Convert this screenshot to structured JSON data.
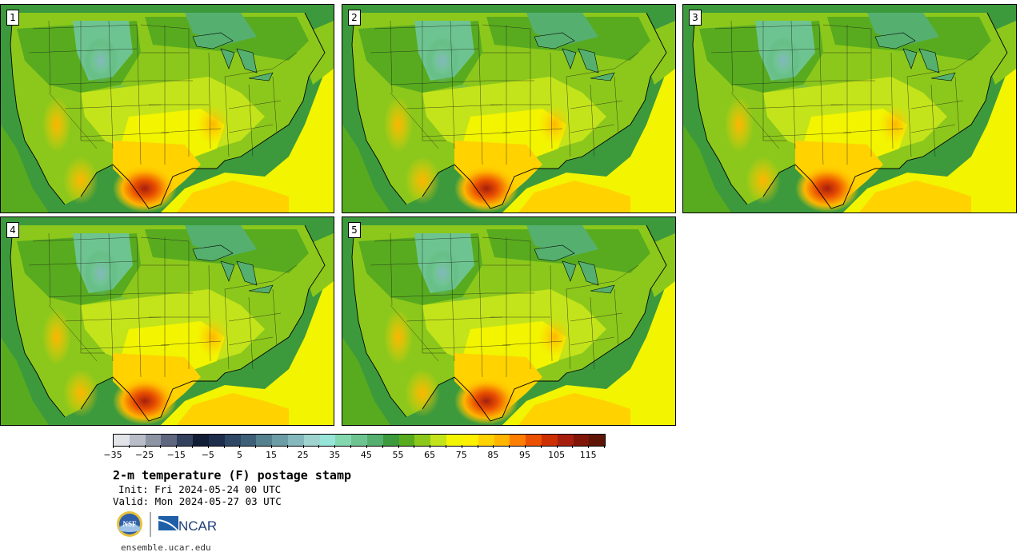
{
  "panels": [
    {
      "label": "1"
    },
    {
      "label": "2"
    },
    {
      "label": "3"
    },
    {
      "label": "4"
    },
    {
      "label": "5"
    }
  ],
  "colorbar": {
    "colors": [
      "#e2e4ea",
      "#b9bdc8",
      "#8d94a4",
      "#5f6780",
      "#33405e",
      "#121d36",
      "#1d2e4c",
      "#2d4764",
      "#3e5f78",
      "#55808e",
      "#6c9da6",
      "#84b8bd",
      "#9ed3cf",
      "#97e4d8",
      "#84d8b0",
      "#6ec490",
      "#55b070",
      "#3c9a3c",
      "#58ab1f",
      "#8cc81b",
      "#c3e41a",
      "#f2f400",
      "#fff000",
      "#ffd200",
      "#ffb400",
      "#ff7d00",
      "#ea5000",
      "#cc3000",
      "#a61e0e",
      "#801508",
      "#5e1505"
    ],
    "ticks": [
      "−35",
      "−25",
      "−15",
      "−5",
      "5",
      "15",
      "25",
      "35",
      "45",
      "55",
      "65",
      "75",
      "85",
      "95",
      "105",
      "115"
    ]
  },
  "title": "2-m temperature (F) postage stamp",
  "init": "Init: Fri 2024-05-24 00 UTC",
  "valid": "Valid: Mon 2024-05-27 03 UTC",
  "logos": {
    "nsf": "NSF",
    "ncar": "NCAR"
  },
  "footer_url": "ensemble.ucar.edu"
}
